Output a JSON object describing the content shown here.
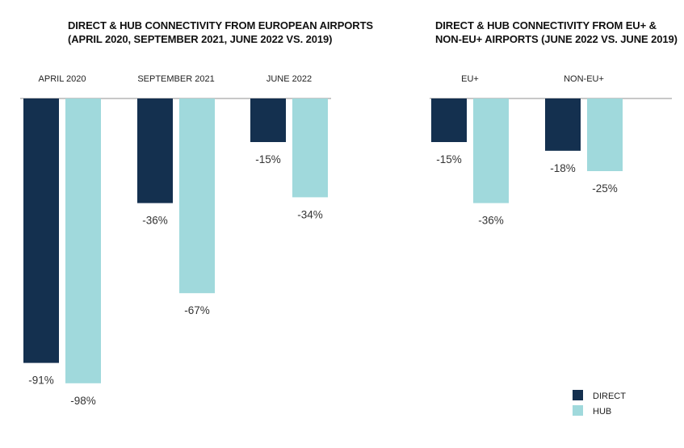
{
  "colors": {
    "direct": "#14304f",
    "hub": "#a0d9dc",
    "axis": "#b5b5b5"
  },
  "legend": {
    "direct_label": "DIRECT",
    "hub_label": "HUB"
  },
  "chart_data": [
    {
      "type": "bar",
      "title_lines": [
        "DIRECT & HUB CONNECTIVITY FROM EUROPEAN AIRPORTS",
        "(APRIL 2020, SEPTEMBER 2021, JUNE 2022 VS. 2019)"
      ],
      "categories": [
        "APRIL 2020",
        "SEPTEMBER 2021",
        "JUNE 2022"
      ],
      "series": [
        {
          "name": "DIRECT",
          "values": [
            -91,
            -36,
            -15
          ],
          "labels": [
            "-91%",
            "-36%",
            "-15%"
          ]
        },
        {
          "name": "HUB",
          "values": [
            -98,
            -67,
            -34
          ],
          "labels": [
            "-98%",
            "-67%",
            "-34%"
          ]
        }
      ],
      "ylim": [
        -100,
        0
      ],
      "xlabel": "",
      "ylabel": ""
    },
    {
      "type": "bar",
      "title_lines": [
        "DIRECT & HUB CONNECTIVITY FROM EU+ &",
        "NON-EU+ AIRPORTS (JUNE 2022 VS. JUNE 2019)"
      ],
      "categories": [
        "EU+",
        "NON-EU+"
      ],
      "series": [
        {
          "name": "DIRECT",
          "values": [
            -15,
            -18
          ],
          "labels": [
            "-15%",
            "-18%"
          ]
        },
        {
          "name": "HUB",
          "values": [
            -36,
            -25
          ],
          "labels": [
            "-36%",
            "-25%"
          ]
        }
      ],
      "ylim": [
        -100,
        0
      ],
      "xlabel": "",
      "ylabel": ""
    }
  ]
}
